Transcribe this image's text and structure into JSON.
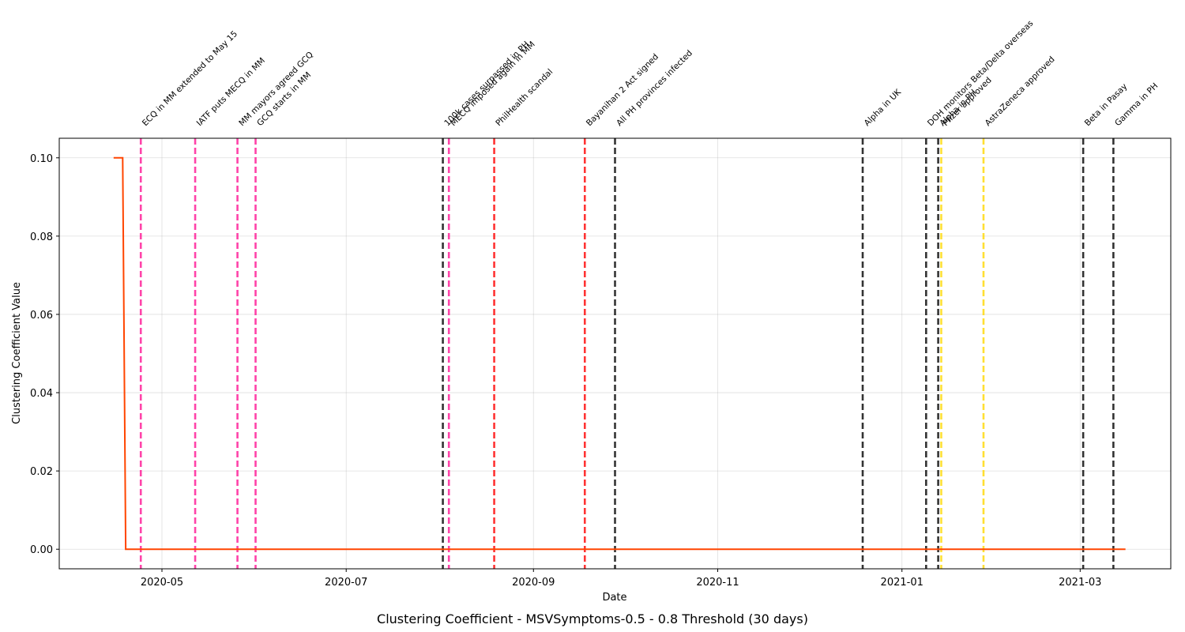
{
  "chart_data": {
    "type": "line",
    "title": "Clustering Coefficient - MSVSymptoms-0.5 - 0.8 Threshold (30 days)",
    "xlabel": "Date",
    "ylabel": "Clustering Coefficient Value",
    "x_range": [
      "2020-03-28",
      "2021-03-31"
    ],
    "ylim": [
      -0.005,
      0.105
    ],
    "grid": true,
    "x_ticks": [
      "2020-05",
      "2020-07",
      "2020-09",
      "2020-11",
      "2021-01",
      "2021-03"
    ],
    "x_tick_dates": [
      "2020-05-01",
      "2020-07-01",
      "2020-09-01",
      "2020-11-01",
      "2021-01-01",
      "2021-03-01"
    ],
    "y_ticks": [
      "0.00",
      "0.02",
      "0.04",
      "0.06",
      "0.08",
      "0.10"
    ],
    "y_tick_values": [
      0.0,
      0.02,
      0.04,
      0.06,
      0.08,
      0.1
    ],
    "series": [
      {
        "color": "#ff4500",
        "x": [
          "2020-04-15",
          "2020-04-18",
          "2020-04-19",
          "2021-03-16"
        ],
        "y": [
          0.1,
          0.1,
          0.0,
          0.0
        ]
      }
    ],
    "events": [
      {
        "date": "2020-04-24",
        "label": "ECQ in MM extended to May 15",
        "color": "#ff1493"
      },
      {
        "date": "2020-05-12",
        "label": "IATF puts MECQ in MM",
        "color": "#ff1493"
      },
      {
        "date": "2020-05-26",
        "label": "MM mayors agreed GCQ",
        "color": "#ff1493"
      },
      {
        "date": "2020-06-01",
        "label": "GCQ starts in MM",
        "color": "#ff1493"
      },
      {
        "date": "2020-08-02",
        "label": "100k cases surpassed in PH",
        "color": "#000000"
      },
      {
        "date": "2020-08-04",
        "label": "MECQ imposed again in MM",
        "color": "#ff1493"
      },
      {
        "date": "2020-08-19",
        "label": "PhilHealth scandal",
        "color": "#ff0000"
      },
      {
        "date": "2020-09-18",
        "label": "Bayanihan 2 Act signed",
        "color": "#ff0000"
      },
      {
        "date": "2020-09-28",
        "label": "All PH provinces infected",
        "color": "#000000"
      },
      {
        "date": "2020-12-19",
        "label": "Alpha in UK",
        "color": "#000000"
      },
      {
        "date": "2021-01-09",
        "label": "DOH monitors Beta/Delta overseas",
        "color": "#000000"
      },
      {
        "date": "2021-01-13",
        "label": "Alpha in PH",
        "color": "#000000"
      },
      {
        "date": "2021-01-14",
        "label": "Pfizer approved",
        "color": "#ffd700"
      },
      {
        "date": "2021-01-28",
        "label": "AstraZeneca approved",
        "color": "#ffd700"
      },
      {
        "date": "2021-03-02",
        "label": "Beta in Pasay",
        "color": "#000000"
      },
      {
        "date": "2021-03-12",
        "label": "Gamma in PH",
        "color": "#000000"
      }
    ]
  }
}
